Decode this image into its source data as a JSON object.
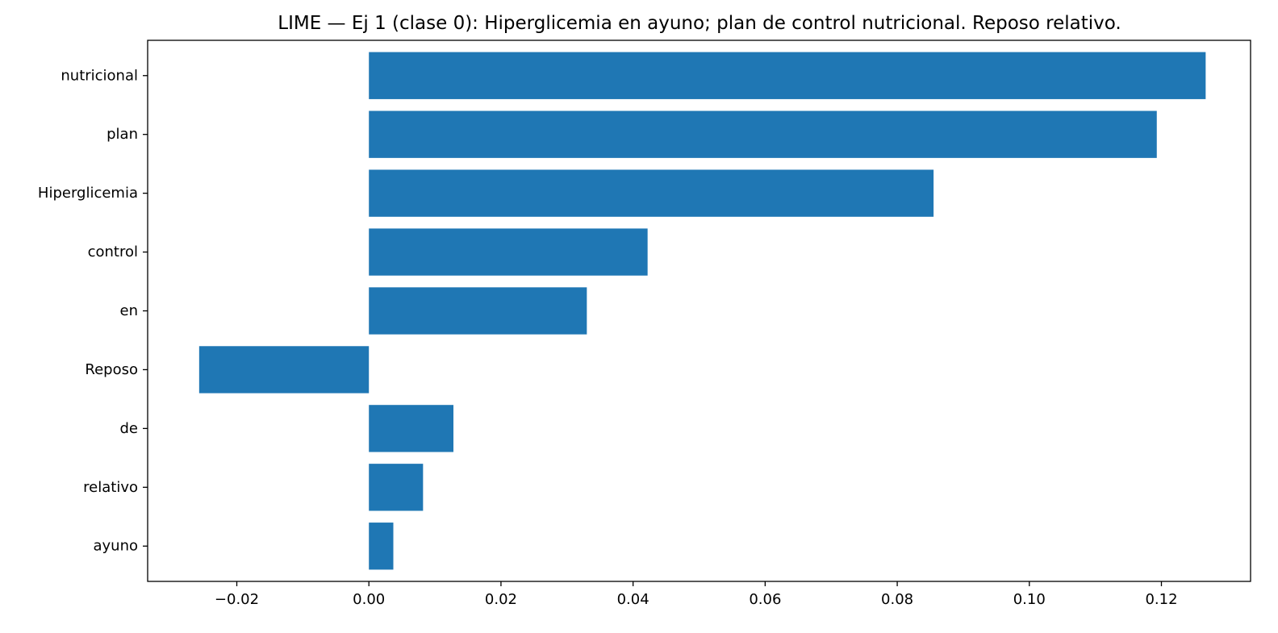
{
  "chart_data": {
    "type": "bar",
    "orientation": "horizontal",
    "title": "LIME — Ej 1 (clase 0): Hiperglicemia en ayuno; plan de control nutricional. Reposo relativo.",
    "xlabel": "",
    "ylabel": "",
    "categories": [
      "nutricional",
      "plan",
      "Hiperglicemia",
      "control",
      "en",
      "Reposo",
      "de",
      "relativo",
      "ayuno"
    ],
    "values": [
      0.1267,
      0.1193,
      0.0855,
      0.0422,
      0.033,
      -0.0257,
      0.0128,
      0.0082,
      0.0037
    ],
    "xlim": [
      -0.0335,
      0.1335
    ],
    "xticks": [
      -0.02,
      0.0,
      0.02,
      0.04,
      0.06,
      0.08,
      0.1,
      0.12
    ],
    "xtick_labels": [
      "−0.02",
      "0.00",
      "0.02",
      "0.04",
      "0.06",
      "0.08",
      "0.10",
      "0.12"
    ],
    "bar_color": "#1f77b4",
    "grid": false,
    "legend": "none"
  }
}
